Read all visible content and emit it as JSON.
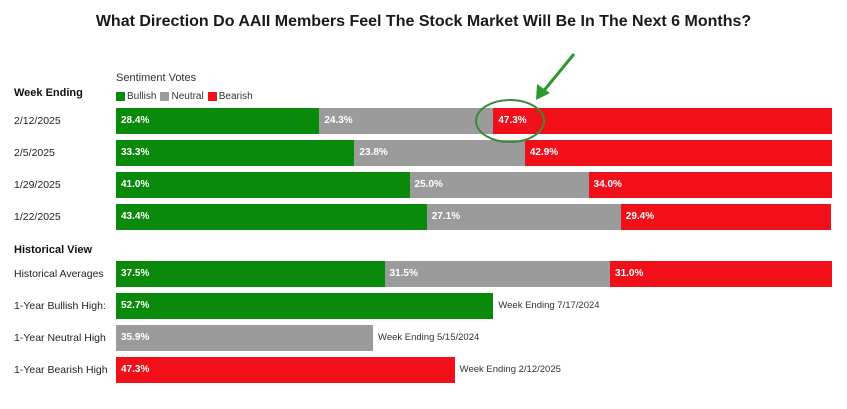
{
  "title": "What Direction Do AAII Members Feel The Stock Market Will Be In The Next 6 Months?",
  "week_ending_label": "Week Ending",
  "historical_view_label": "Historical View",
  "legend": {
    "title": "Sentiment Votes",
    "items": [
      {
        "label": "Bullish",
        "color": "#0a8a0a"
      },
      {
        "label": "Neutral",
        "color": "#9b9b9b"
      },
      {
        "label": "Bearish",
        "color": "#f10f1a"
      }
    ]
  },
  "chart_data": {
    "type": "bar",
    "stacked": true,
    "orientation": "horizontal",
    "colors": {
      "bullish": "#0a8a0a",
      "neutral": "#9b9b9b",
      "bearish": "#f10f1a"
    },
    "weekly": [
      {
        "label": "2/12/2025",
        "bullish": 28.4,
        "neutral": 24.3,
        "bearish": 47.3,
        "bullish_text": "28.4%",
        "neutral_text": "24.3%",
        "bearish_text": "47.3%"
      },
      {
        "label": "2/5/2025",
        "bullish": 33.3,
        "neutral": 23.8,
        "bearish": 42.9,
        "bullish_text": "33.3%",
        "neutral_text": "23.8%",
        "bearish_text": "42.9%"
      },
      {
        "label": "1/29/2025",
        "bullish": 41.0,
        "neutral": 25.0,
        "bearish": 34.0,
        "bullish_text": "41.0%",
        "neutral_text": "25.0%",
        "bearish_text": "34.0%"
      },
      {
        "label": "1/22/2025",
        "bullish": 43.4,
        "neutral": 27.1,
        "bearish": 29.4,
        "bullish_text": "43.4%",
        "neutral_text": "27.1%",
        "bearish_text": "29.4%"
      }
    ],
    "historical_averages": {
      "label": "Historical Averages",
      "bullish": 37.5,
      "neutral": 31.5,
      "bearish": 31.0,
      "bullish_text": "37.5%",
      "neutral_text": "31.5%",
      "bearish_text": "31.0%"
    },
    "highs": [
      {
        "label": "1-Year Bullish High:",
        "series": "bullish",
        "value": 52.7,
        "value_text": "52.7%",
        "note": "Week Ending 7/17/2024"
      },
      {
        "label": "1-Year Neutral High",
        "series": "neutral",
        "value": 35.9,
        "value_text": "35.9%",
        "note": "Week Ending 5/15/2024"
      },
      {
        "label": "1-Year Bearish High",
        "series": "bearish",
        "value": 47.3,
        "value_text": "47.3%",
        "note": "Week Ending 2/12/2025"
      }
    ],
    "annotation": {
      "target": "2/12/2025 bearish",
      "shape": "circle with arrow",
      "color": "#2e8b2e"
    }
  }
}
